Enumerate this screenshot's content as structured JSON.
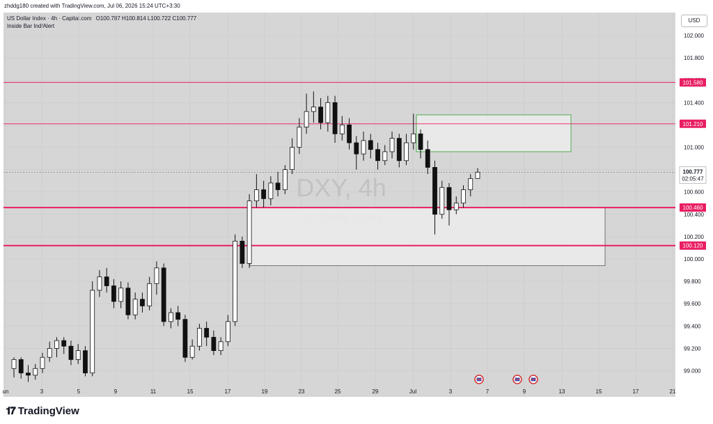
{
  "credit": "zhddg180 created with TradingView.com, Jul 06, 2026 15:24 UTC+3:30",
  "legend": {
    "symbol": "US Dollar Index · 4h · Capital.com",
    "ohlc": "O100.787 H100.814 L100.722 C100.777",
    "indicator": "Inside Bar Ind/Alert"
  },
  "watermark": {
    "ticker": "DXY, 4h",
    "name": "US Dollar Index"
  },
  "currency_button": "USD",
  "brand": "TradingView",
  "colors": {
    "level_line": "#e91e63",
    "zone_green": "#4caf50",
    "zone_gray": "#555555",
    "chart_bg": "#d6d6d6"
  },
  "price_axis": {
    "ticks": [
      "102.000",
      "101.800",
      "101.600",
      "101.400",
      "101.200",
      "101.000",
      "100.800",
      "100.600",
      "100.400",
      "100.200",
      "100.000",
      "99.800",
      "99.600",
      "99.400",
      "99.200",
      "99.000"
    ],
    "last_price": "100.777",
    "countdown": "02:05:47",
    "level_labels": [
      "101.580",
      "101.210",
      "100.460",
      "100.120"
    ]
  },
  "time_axis": [
    "un",
    "3",
    "5",
    "9",
    "11",
    "15",
    "17",
    "19",
    "23",
    "25",
    "29",
    "Jul",
    "3",
    "7",
    "9",
    "13",
    "15",
    "17",
    "21"
  ],
  "chart_data": {
    "type": "candlestick",
    "title": "US Dollar Index · 4h · Capital.com",
    "ylim": [
      98.95,
      102.05
    ],
    "horizontal_levels": [
      101.58,
      101.21,
      100.46,
      100.12
    ],
    "last_price": 100.777,
    "zones": [
      {
        "kind": "supply",
        "top": 101.29,
        "bottom": 100.96
      },
      {
        "kind": "demand",
        "top": 100.46,
        "bottom": 99.94
      }
    ]
  }
}
